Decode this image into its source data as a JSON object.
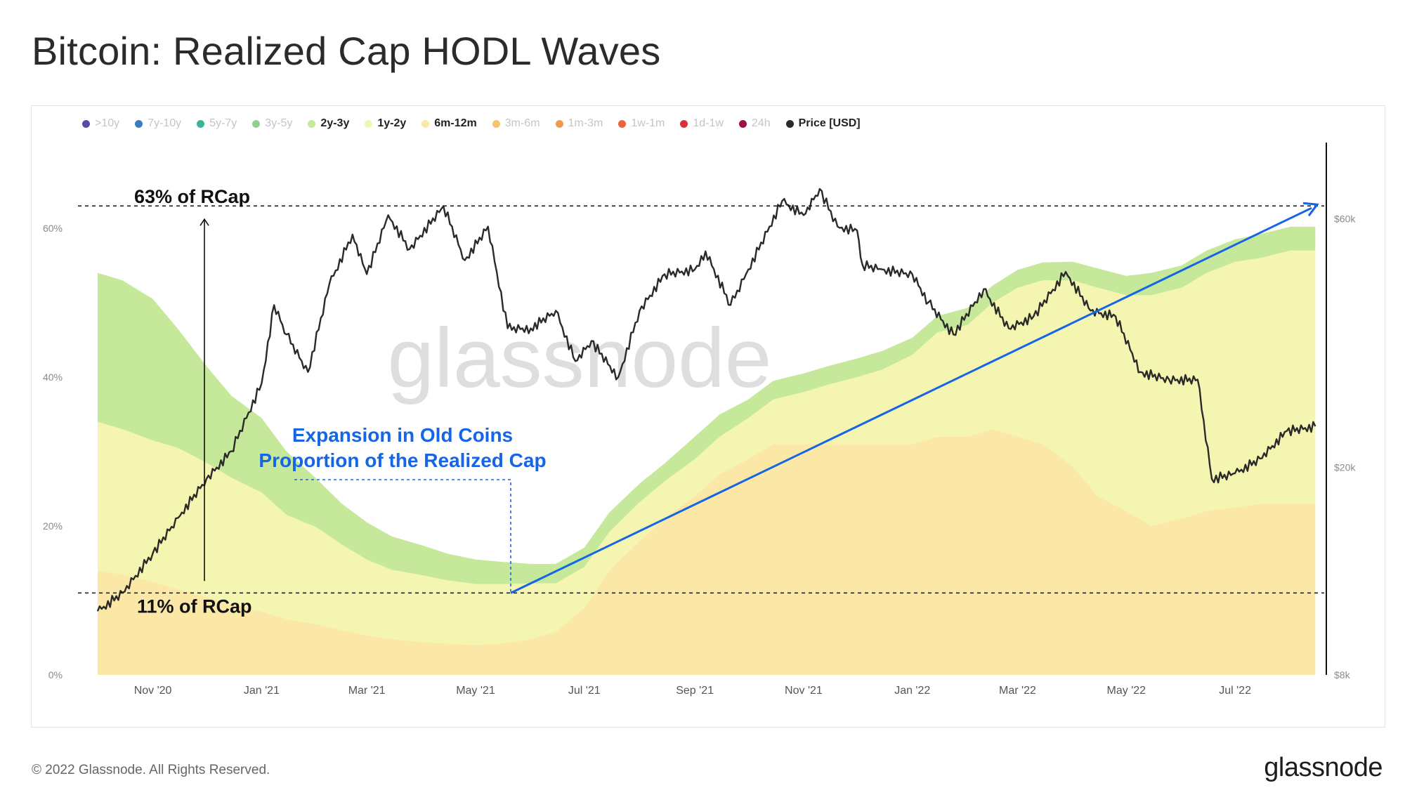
{
  "page": {
    "title": "Bitcoin: Realized Cap HODL Waves",
    "footer": "© 2022 Glassnode. All Rights Reserved.",
    "brand": "glassnode",
    "watermark": "glassnode"
  },
  "legend": [
    {
      "label": ">10y",
      "color": "#5a4aa8",
      "active": false
    },
    {
      "label": "7y-10y",
      "color": "#3a7cc0",
      "active": false
    },
    {
      "label": "5y-7y",
      "color": "#3cb39a",
      "active": false
    },
    {
      "label": "3y-5y",
      "color": "#8fd18e",
      "active": false
    },
    {
      "label": "2y-3y",
      "color": "#c6e89a",
      "active": true
    },
    {
      "label": "1y-2y",
      "color": "#f3f5b0",
      "active": true
    },
    {
      "label": "6m-12m",
      "color": "#fbe8a6",
      "active": true
    },
    {
      "label": "3m-6m",
      "color": "#f6c46a",
      "active": false
    },
    {
      "label": "1m-3m",
      "color": "#f09a4a",
      "active": false
    },
    {
      "label": "1w-1m",
      "color": "#e8643c",
      "active": false
    },
    {
      "label": "1d-1w",
      "color": "#d8313f",
      "active": false
    },
    {
      "label": "24h",
      "color": "#9c0f4a",
      "active": false
    },
    {
      "label": "Price [USD]",
      "color": "#2a2a2a",
      "active": true
    }
  ],
  "annotations": {
    "top_level_label": "63% of RCap",
    "bottom_level_label": "11% of RCap",
    "expansion_line1": "Expansion in Old Coins",
    "expansion_line2": "Proportion of the Realized Cap",
    "top_level_value": 63,
    "bottom_level_value": 11
  },
  "chart_data": {
    "type": "area",
    "x": [
      "2020-10-01",
      "2020-10-15",
      "2020-11-01",
      "2020-11-15",
      "2020-12-01",
      "2020-12-15",
      "2021-01-01",
      "2021-01-15",
      "2021-02-01",
      "2021-02-15",
      "2021-03-01",
      "2021-03-15",
      "2021-04-01",
      "2021-04-15",
      "2021-05-01",
      "2021-05-15",
      "2021-06-01",
      "2021-06-15",
      "2021-07-01",
      "2021-07-15",
      "2021-08-01",
      "2021-08-15",
      "2021-09-01",
      "2021-09-15",
      "2021-10-01",
      "2021-10-15",
      "2021-11-01",
      "2021-11-15",
      "2021-12-01",
      "2021-12-15",
      "2022-01-01",
      "2022-01-15",
      "2022-02-01",
      "2022-02-15",
      "2022-03-01",
      "2022-03-15",
      "2022-04-01",
      "2022-04-15",
      "2022-05-01",
      "2022-05-15",
      "2022-06-01",
      "2022-06-15",
      "2022-07-01",
      "2022-07-15",
      "2022-08-01",
      "2022-08-15"
    ],
    "series": [
      {
        "name": "6m-12m",
        "color": "#fbe8a6",
        "values": [
          14,
          13.5,
          12.5,
          11.5,
          10.5,
          9.5,
          8.5,
          7.5,
          6.8,
          6.0,
          5.3,
          4.8,
          4.4,
          4.2,
          4.0,
          4.2,
          4.8,
          5.8,
          9,
          14,
          18,
          21,
          24,
          27,
          29,
          31,
          31,
          31,
          31,
          31,
          31,
          32,
          32,
          33,
          32,
          31,
          28,
          24,
          22,
          20,
          21,
          22,
          22.5,
          23,
          23,
          23
        ]
      },
      {
        "name": "1y-2y",
        "color": "#f3f5b0",
        "values": [
          20,
          19.5,
          19,
          19,
          18,
          17,
          16,
          14,
          13,
          11.5,
          10.2,
          9.3,
          9.0,
          8.5,
          8.2,
          8.0,
          7.5,
          6.5,
          5.5,
          5.2,
          5.2,
          5,
          5,
          5,
          5.5,
          6,
          7,
          8,
          9,
          10,
          12,
          14,
          15,
          17,
          20,
          22,
          25,
          28,
          29,
          31,
          31,
          32,
          33,
          33,
          34,
          34
        ]
      },
      {
        "name": "2y-3y",
        "color": "#c6e89a",
        "values": [
          20,
          20,
          19,
          16,
          13,
          11,
          10,
          8.5,
          6.5,
          5.5,
          5.0,
          4.5,
          4.0,
          3.6,
          3.3,
          3.0,
          2.6,
          2.6,
          2.6,
          2.6,
          2.5,
          2.4,
          3,
          3,
          2.5,
          2.5,
          2.5,
          2.5,
          2.5,
          2.5,
          2.3,
          2.2,
          2.3,
          2.3,
          2.4,
          2.4,
          2.5,
          2.6,
          2.6,
          3,
          3,
          3,
          3,
          3.2,
          3.2,
          3.2
        ]
      }
    ],
    "price": [
      {
        "x": "2020-10-01",
        "y": 10600
      },
      {
        "x": "2020-10-15",
        "y": 11500
      },
      {
        "x": "2020-11-01",
        "y": 13700
      },
      {
        "x": "2020-11-15",
        "y": 16000
      },
      {
        "x": "2020-12-01",
        "y": 19000
      },
      {
        "x": "2020-12-15",
        "y": 21500
      },
      {
        "x": "2021-01-01",
        "y": 29000
      },
      {
        "x": "2021-01-08",
        "y": 41000
      },
      {
        "x": "2021-01-15",
        "y": 36000
      },
      {
        "x": "2021-01-27",
        "y": 30500
      },
      {
        "x": "2021-02-08",
        "y": 45000
      },
      {
        "x": "2021-02-21",
        "y": 56000
      },
      {
        "x": "2021-03-01",
        "y": 47000
      },
      {
        "x": "2021-03-13",
        "y": 61000
      },
      {
        "x": "2021-03-25",
        "y": 52500
      },
      {
        "x": "2021-04-13",
        "y": 63500
      },
      {
        "x": "2021-04-25",
        "y": 50000
      },
      {
        "x": "2021-05-08",
        "y": 58000
      },
      {
        "x": "2021-05-19",
        "y": 37000
      },
      {
        "x": "2021-06-01",
        "y": 37000
      },
      {
        "x": "2021-06-15",
        "y": 40000
      },
      {
        "x": "2021-06-26",
        "y": 32000
      },
      {
        "x": "2021-07-05",
        "y": 35000
      },
      {
        "x": "2021-07-20",
        "y": 29800
      },
      {
        "x": "2021-08-01",
        "y": 40000
      },
      {
        "x": "2021-08-15",
        "y": 47000
      },
      {
        "x": "2021-09-01",
        "y": 48000
      },
      {
        "x": "2021-09-07",
        "y": 52000
      },
      {
        "x": "2021-09-21",
        "y": 41000
      },
      {
        "x": "2021-10-01",
        "y": 48000
      },
      {
        "x": "2021-10-20",
        "y": 65000
      },
      {
        "x": "2021-11-01",
        "y": 61000
      },
      {
        "x": "2021-11-10",
        "y": 68500
      },
      {
        "x": "2021-11-20",
        "y": 58000
      },
      {
        "x": "2021-12-01",
        "y": 57000
      },
      {
        "x": "2021-12-04",
        "y": 49000
      },
      {
        "x": "2021-12-15",
        "y": 48000
      },
      {
        "x": "2022-01-01",
        "y": 47000
      },
      {
        "x": "2022-01-10",
        "y": 41500
      },
      {
        "x": "2022-01-24",
        "y": 36000
      },
      {
        "x": "2022-02-10",
        "y": 44000
      },
      {
        "x": "2022-02-24",
        "y": 37000
      },
      {
        "x": "2022-03-10",
        "y": 39000
      },
      {
        "x": "2022-03-28",
        "y": 47500
      },
      {
        "x": "2022-04-11",
        "y": 40000
      },
      {
        "x": "2022-04-25",
        "y": 39000
      },
      {
        "x": "2022-05-09",
        "y": 30500
      },
      {
        "x": "2022-05-25",
        "y": 29500
      },
      {
        "x": "2022-06-10",
        "y": 29500
      },
      {
        "x": "2022-06-18",
        "y": 19000
      },
      {
        "x": "2022-07-01",
        "y": 19500
      },
      {
        "x": "2022-07-15",
        "y": 20800
      },
      {
        "x": "2022-07-30",
        "y": 23500
      },
      {
        "x": "2022-08-15",
        "y": 24000
      }
    ],
    "x_ticks": [
      "Nov '20",
      "Jan '21",
      "Mar '21",
      "May '21",
      "Jul '21",
      "Sep '21",
      "Nov '21",
      "Jan '22",
      "Mar '22",
      "May '22",
      "Jul '22"
    ],
    "y_left_ticks": [
      "0%",
      "20%",
      "40%",
      "60%"
    ],
    "y_right_ticks": [
      "$8k",
      "$20k",
      "$60k"
    ],
    "y_left_lim": [
      0,
      70
    ],
    "y_right_lim_log": [
      8000,
      80000
    ],
    "grid": true,
    "legend_position": "top"
  }
}
